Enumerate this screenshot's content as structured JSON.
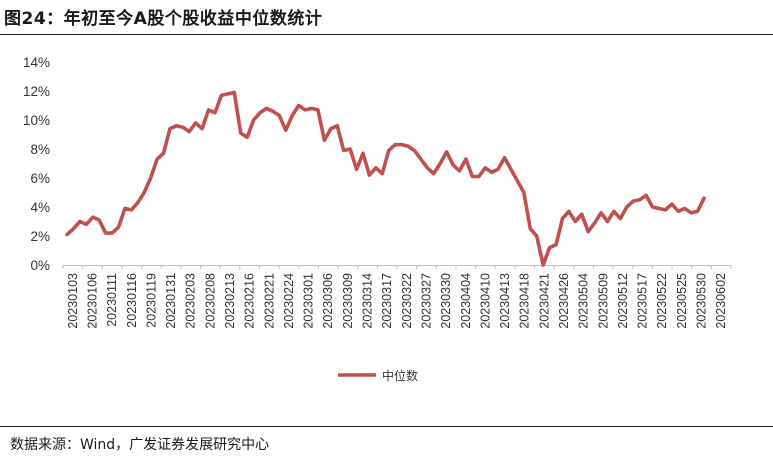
{
  "figure_title": "图24：年初至今A股个股收益中位数统计",
  "source": "数据来源：Wind，广发证券发展研究中心",
  "colors": {
    "series": "#c0504d",
    "axis": "#bfbfbf",
    "rule": "#222222"
  },
  "chart_data": {
    "type": "line",
    "title": "年初至今A股个股收益中位数统计",
    "xlabel": "",
    "ylabel": "",
    "ylim": [
      0,
      14
    ],
    "y_ticks": [
      "0%",
      "2%",
      "4%",
      "6%",
      "8%",
      "10%",
      "12%",
      "14%"
    ],
    "grid": false,
    "legend_position": "bottom-center",
    "x_tick_labels": [
      "20230103",
      "20230106",
      "20230111",
      "20230116",
      "20230119",
      "20230131",
      "20230203",
      "20230208",
      "20230213",
      "20230216",
      "20230221",
      "20230224",
      "20230301",
      "20230306",
      "20230309",
      "20230314",
      "20230317",
      "20230322",
      "20230327",
      "20230330",
      "20230404",
      "20230410",
      "20230413",
      "20230418",
      "20230421",
      "20230426",
      "20230504",
      "20230509",
      "20230512",
      "20230517",
      "20230522",
      "20230525",
      "20230530",
      "20230602"
    ],
    "series": [
      {
        "name": "中位数",
        "values": [
          2.1,
          2.5,
          3.0,
          2.8,
          3.3,
          3.1,
          2.2,
          2.2,
          2.6,
          3.9,
          3.8,
          4.3,
          5.0,
          6.0,
          7.3,
          7.7,
          9.4,
          9.6,
          9.5,
          9.2,
          9.8,
          9.4,
          10.7,
          10.5,
          11.7,
          11.8,
          11.9,
          9.1,
          8.8,
          10.0,
          10.5,
          10.8,
          10.6,
          10.3,
          9.3,
          10.3,
          11.0,
          10.7,
          10.8,
          10.7,
          8.6,
          9.4,
          9.6,
          7.9,
          8.0,
          6.6,
          7.7,
          6.2,
          6.7,
          6.3,
          7.9,
          8.3,
          8.3,
          8.2,
          7.9,
          7.3,
          6.7,
          6.3,
          7.0,
          7.8,
          6.9,
          6.5,
          7.3,
          6.1,
          6.1,
          6.7,
          6.4,
          6.6,
          7.4,
          6.6,
          5.8,
          5.0,
          2.5,
          2.0,
          0.0,
          1.2,
          1.4,
          3.2,
          3.7,
          3.0,
          3.5,
          2.3,
          2.9,
          3.6,
          3.0,
          3.7,
          3.2,
          4.0,
          4.4,
          4.5,
          4.8,
          4.0,
          3.9,
          3.8,
          4.2,
          3.7,
          3.9,
          3.6,
          3.7,
          4.6
        ]
      }
    ]
  }
}
